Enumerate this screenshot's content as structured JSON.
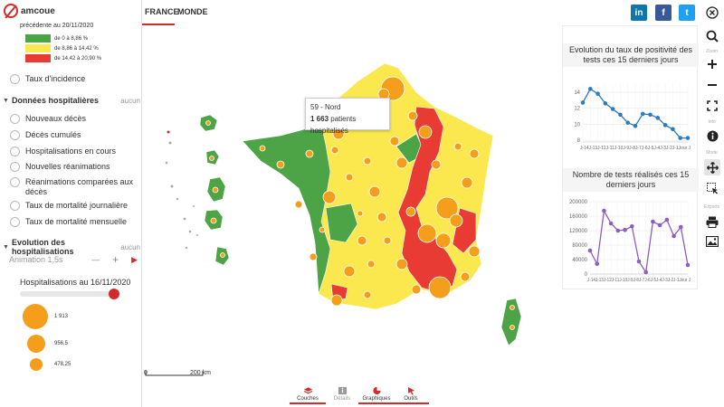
{
  "app": {
    "logo_text": "amcoue"
  },
  "legend": {
    "subtitle": "précédente au 20/11/2020",
    "classes": [
      {
        "label": "de 0 à 8,86 %",
        "color": "#4ca446"
      },
      {
        "label": "de 8,86 à 14,42 %",
        "color": "#fae84e"
      },
      {
        "label": "de 14,42 à 20,90 %",
        "color": "#e83b34"
      }
    ],
    "taux_incidence": "Taux d'incidence"
  },
  "hosp_section": {
    "title": "Données hospitalières",
    "aucun": "aucun",
    "items": [
      "Nouveaux décès",
      "Décès cumulés",
      "Hospitalisations en cours",
      "Nouvelles réanimations",
      "Réanimations comparées aux décès",
      "Taux de mortalité journalière",
      "Taux de mortalité mensuelle"
    ]
  },
  "evo_section": {
    "title": "Evolution des hospitalisations",
    "aucun": "aucun",
    "animation_label": "Animation 1,5s",
    "minus": "—",
    "plus": "+",
    "play": "▶",
    "slider_label": "Hospitalisations au 16/11/2020",
    "slider_fraction": 1.0,
    "proportional": [
      {
        "label": "1 913",
        "value": 1913
      },
      {
        "label": "956,5",
        "value": 956.5
      },
      {
        "label": "478,25",
        "value": 478.25
      }
    ]
  },
  "tabs": {
    "france": "FRANCE",
    "monde": "MONDE"
  },
  "tooltip": {
    "title": "59 - Nord",
    "value": "1 663",
    "suffix": " patients hospitalisés"
  },
  "scalebar": {
    "zero": "0",
    "end": "200 km"
  },
  "share": {
    "linkedin": "in",
    "facebook": "f",
    "twitter": "t"
  },
  "colors": {
    "accent": "#d42a2a",
    "green": "#4ca446",
    "yellow": "#fae84e",
    "red": "#e83b34",
    "bubble": "#f59e1b"
  },
  "tools": {
    "zoom_label": "Zoom",
    "info_label": "Info",
    "mode_label": "Mode",
    "export_label": "Exports",
    "icons": [
      "close-icon",
      "search-icon",
      "zoom-in-icon",
      "zoom-out-icon",
      "fullscreen-icon",
      "info-icon",
      "pan-icon",
      "select-icon",
      "print-icon",
      "image-icon"
    ]
  },
  "bottom_tabs": {
    "couches": "Couches",
    "details": "Détails",
    "graphiques": "Graphiques",
    "outils": "Outils"
  },
  "chart_data": [
    {
      "type": "line",
      "title": "Evolution du taux de positivité des tests ces 15 derniers jours",
      "x": [
        "J-14",
        "J-13",
        "J-12",
        "J-11",
        "J-10",
        "J-9",
        "J-8",
        "J-7",
        "J-6",
        "J-5",
        "J-4",
        "J-3",
        "J-2",
        "J-1",
        "Jour J"
      ],
      "x_tick_labels": [
        "J-1",
        "4J-1",
        "3J-1",
        "2J-1",
        "1J-",
        "10J-",
        "9J",
        "-8J",
        "-7J-",
        "6J-",
        "5J-",
        "4J-",
        "3J-",
        "2J-1",
        "Jour J"
      ],
      "values": [
        12.7,
        14.4,
        13.8,
        12.6,
        11.9,
        11.2,
        10.2,
        9.8,
        11.3,
        11.2,
        10.8,
        9.9,
        9.4,
        8.3,
        8.3
      ],
      "yticks": [
        8,
        10,
        12,
        14
      ],
      "ylim": [
        7.8,
        15
      ],
      "color": "#2b7bc1"
    },
    {
      "type": "line",
      "title": "Nombre de tests réalisés ces 15 derniers jours",
      "x": [
        "J-14",
        "J-13",
        "J-12",
        "J-11",
        "J-10",
        "J-9",
        "J-8",
        "J-7",
        "J-6",
        "J-5",
        "J-4",
        "J-3",
        "J-2",
        "J-1",
        "Jour J"
      ],
      "x_tick_labels": [
        "J-1",
        "4J-1",
        "3J-1",
        "2J-1",
        "1J-",
        "10J-",
        "9J",
        "-8J",
        "-7J-",
        "6J-",
        "5J-",
        "4J-",
        "3J-",
        "2J-1",
        "Jour J"
      ],
      "values": [
        65000,
        28000,
        175000,
        140000,
        120000,
        122000,
        132000,
        35000,
        5000,
        145000,
        135000,
        150000,
        105000,
        130000,
        25000
      ],
      "yticks": [
        0,
        40000,
        80000,
        120000,
        160000,
        200000
      ],
      "ytick_labels": [
        "0",
        "40000",
        "80000",
        "120000",
        "160000",
        "200000"
      ],
      "ylim": [
        0,
        200000
      ],
      "color": "#8e5dc4"
    }
  ]
}
